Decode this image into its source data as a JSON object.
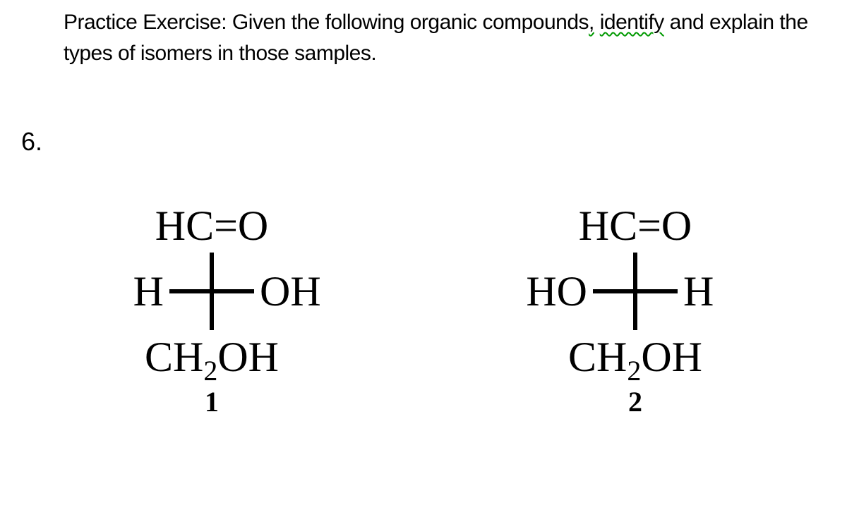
{
  "prompt": {
    "prefix": "Practice Exercise: Given the following organic compounds",
    "comma": ",",
    "identify": "identify",
    "rest": " and explain the types of isomers in those samples."
  },
  "question_number": "6.",
  "structure1": {
    "top": "HC=O",
    "left": "H",
    "right": "OH",
    "bottom_pre": "CH",
    "bottom_sub": "2",
    "bottom_post": "OH",
    "label": "1"
  },
  "structure2": {
    "top": "HC=O",
    "left": "HO",
    "right": "H",
    "bottom_pre": "CH",
    "bottom_sub": "2",
    "bottom_post": "OH",
    "label": "2"
  }
}
